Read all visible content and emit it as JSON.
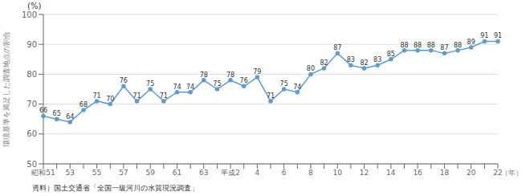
{
  "chart_data": {
    "type": "line",
    "categories": [
      "昭和51",
      null,
      "53",
      null,
      "55",
      null,
      "57",
      null,
      "59",
      null,
      "61",
      null,
      "63",
      null,
      "平成2",
      null,
      "4",
      null,
      "6",
      null,
      "8",
      null,
      "10",
      null,
      "12",
      null,
      "14",
      null,
      "16",
      null,
      "18",
      null,
      "20",
      null,
      "22"
    ],
    "values": [
      66,
      65,
      64,
      68,
      71,
      70,
      76,
      71,
      75,
      71,
      74,
      74,
      78,
      75,
      78,
      76,
      79,
      71,
      75,
      74,
      80,
      82,
      87,
      83,
      82,
      83,
      85,
      88,
      88,
      88,
      87,
      88,
      89,
      91,
      91
    ],
    "color": "#5b9bd5",
    "marker": "circle",
    "ylim": [
      50,
      100
    ],
    "yticks": [
      50,
      60,
      70,
      80,
      90,
      100
    ],
    "grid": true,
    "data_labels": true,
    "y_label": "環境基準を満足した調査地点の割合",
    "x_label": "（年）",
    "annotations": [
      "(%)",
      "資料）国土交通省「全国一級河川の水質現況調査」"
    ]
  }
}
